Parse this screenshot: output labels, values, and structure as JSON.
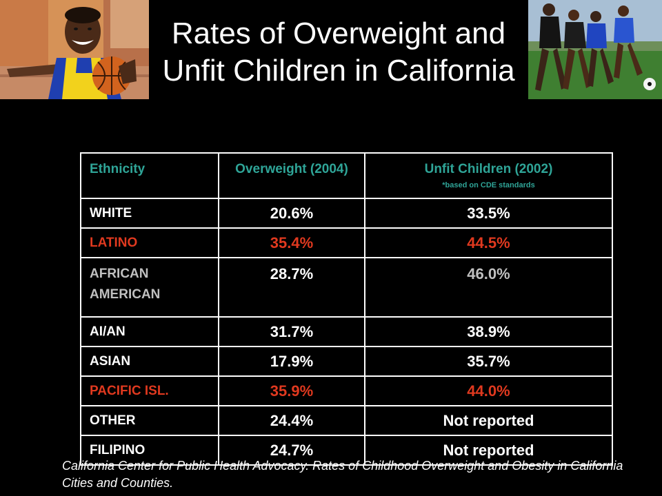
{
  "title": "Rates of Overweight and Unfit Children in California",
  "table": {
    "headers": {
      "ethnicity": "Ethnicity",
      "overweight": "Overweight (2004)",
      "unfit": "Unfit Children (2002)",
      "unfit_note": "*based on CDE standards"
    },
    "rows": [
      {
        "ethnicity": "WHITE",
        "overweight": "20.6%",
        "unfit": "33.5%",
        "color": "#ffffff"
      },
      {
        "ethnicity": "LATINO",
        "overweight": "35.4%",
        "unfit": "44.5%",
        "color": "#e0391f"
      },
      {
        "ethnicity": "AFRICAN AMERICAN",
        "overweight": "28.7%",
        "unfit": "46.0%",
        "color": "#c0c0c0"
      },
      {
        "ethnicity": "AI/AN",
        "overweight": "31.7%",
        "unfit": "38.9%",
        "color": "#ffffff"
      },
      {
        "ethnicity": "ASIAN",
        "overweight": "17.9%",
        "unfit": "35.7%",
        "color": "#ffffff"
      },
      {
        "ethnicity": "PACIFIC ISL.",
        "overweight": "35.9%",
        "unfit": "44.0%",
        "color": "#e0391f"
      },
      {
        "ethnicity": "OTHER",
        "overweight": "24.4%",
        "unfit": "Not reported",
        "color": "#ffffff"
      },
      {
        "ethnicity": "FILIPINO",
        "overweight": "24.7%",
        "unfit": "Not reported",
        "color": "#ffffff"
      }
    ]
  },
  "citation": "California Center for Public Health Advocacy.  Rates of Childhood Overweight and Obesity in California Cities and Counties.",
  "colors": {
    "background": "#000000",
    "header_teal": "#2fa598",
    "highlight_red": "#e0391f",
    "muted_gray": "#c0c0c0"
  },
  "images": {
    "left_photo": "boy-with-basketball-photo",
    "right_photo": "girls-playing-soccer-photo"
  }
}
